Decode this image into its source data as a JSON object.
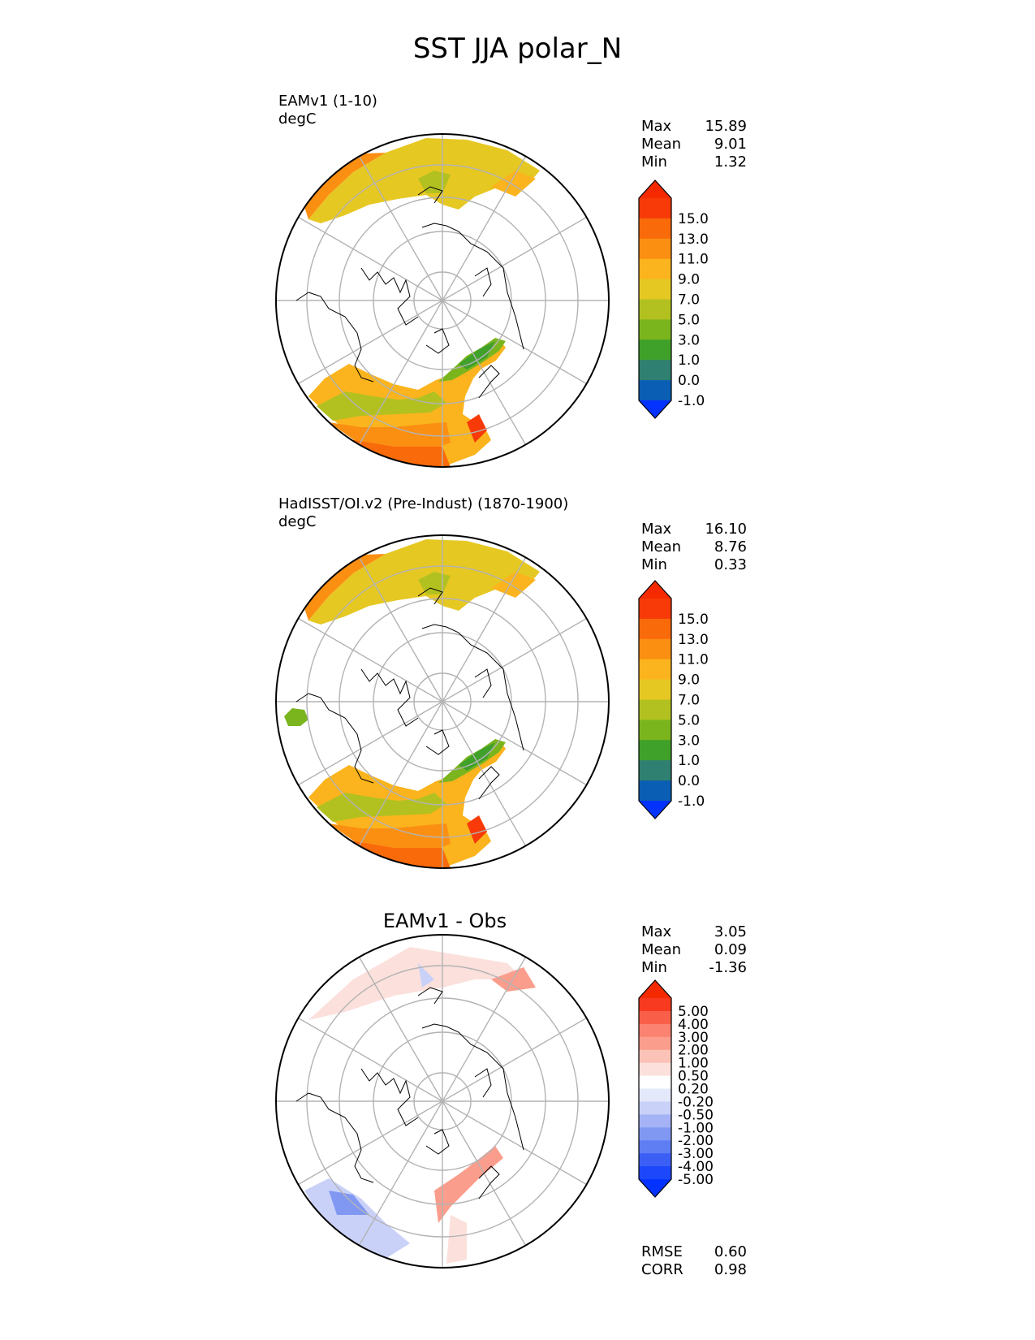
{
  "title": "SST JJA polar_N",
  "panels": [
    {
      "label": "EAMv1 (1-10)",
      "units": "degC",
      "stats": [
        {
          "name": "Max",
          "value": "15.89"
        },
        {
          "name": "Mean",
          "value": "9.01"
        },
        {
          "name": "Min",
          "value": "1.32"
        }
      ],
      "colorbar_labels": [
        "15.0",
        "13.0",
        "11.0",
        "9.0",
        "7.0",
        "5.0",
        "3.0",
        "1.0",
        "0.0",
        "-1.0"
      ]
    },
    {
      "label": "HadISST/OI.v2 (Pre-Indust) (1870-1900)",
      "units": "degC",
      "stats": [
        {
          "name": "Max",
          "value": "16.10"
        },
        {
          "name": "Mean",
          "value": "8.76"
        },
        {
          "name": "Min",
          "value": "0.33"
        }
      ],
      "colorbar_labels": [
        "15.0",
        "13.0",
        "11.0",
        "9.0",
        "7.0",
        "5.0",
        "3.0",
        "1.0",
        "0.0",
        "-1.0"
      ]
    },
    {
      "title": "EAMv1 - Obs",
      "stats": [
        {
          "name": "Max",
          "value": "3.05"
        },
        {
          "name": "Mean",
          "value": "0.09"
        },
        {
          "name": "Min",
          "value": "-1.36"
        }
      ],
      "colorbar_labels": [
        "5.00",
        "4.00",
        "3.00",
        "2.00",
        "1.00",
        "0.50",
        "0.20",
        "-0.20",
        "-0.50",
        "-1.00",
        "-2.00",
        "-3.00",
        "-4.00",
        "-5.00"
      ],
      "metrics": [
        {
          "name": "RMSE",
          "value": "0.60"
        },
        {
          "name": "CORR",
          "value": "0.98"
        }
      ]
    }
  ],
  "colors": {
    "sst_scale": [
      "#0433ff",
      "#0a5fb4",
      "#2f8070",
      "#3fa02a",
      "#7bb51e",
      "#b2c120",
      "#e6c823",
      "#fbb41d",
      "#fb8f12",
      "#f96a0a",
      "#f73a07",
      "#f62a00"
    ],
    "diff_scale": [
      "#0433ff",
      "#1c47fb",
      "#3b5ff5",
      "#5f7ef4",
      "#8198f3",
      "#a5b3f6",
      "#c9d1f8",
      "#e4e8fb",
      "#ffffff",
      "#fbe0dc",
      "#fbc2b8",
      "#fb9d8c",
      "#fb8270",
      "#f95f48",
      "#f73a20",
      "#f62a00"
    ],
    "land_stroke": "#000000",
    "grid": "#b3b3b3"
  }
}
